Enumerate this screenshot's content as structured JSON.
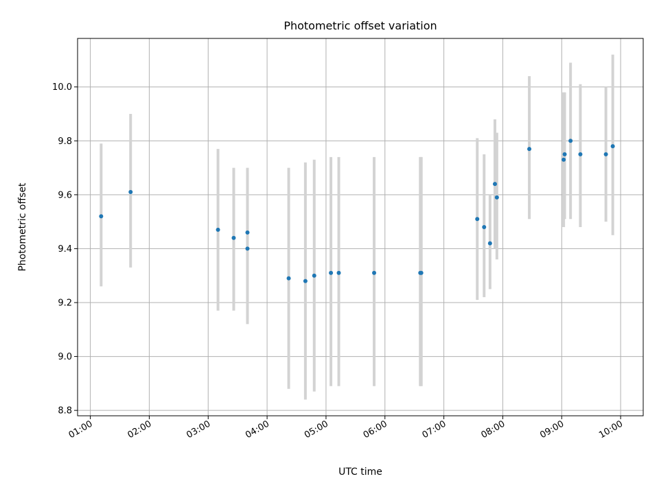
{
  "chart_data": {
    "type": "scatter",
    "title": "Photometric offset variation",
    "xlabel": "UTC time",
    "ylabel": "Photometric offset",
    "x_axis_unit": "minutes after 00:00 UTC",
    "xlim": [
      47,
      623
    ],
    "ylim": [
      8.78,
      10.18
    ],
    "x_ticks": [
      {
        "value": 60,
        "label": "01:00"
      },
      {
        "value": 120,
        "label": "02:00"
      },
      {
        "value": 180,
        "label": "03:00"
      },
      {
        "value": 240,
        "label": "04:00"
      },
      {
        "value": 300,
        "label": "05:00"
      },
      {
        "value": 360,
        "label": "06:00"
      },
      {
        "value": 420,
        "label": "07:00"
      },
      {
        "value": 480,
        "label": "08:00"
      },
      {
        "value": 540,
        "label": "09:00"
      },
      {
        "value": 600,
        "label": "10:00"
      }
    ],
    "y_ticks": [
      {
        "value": 8.8,
        "label": "8.8"
      },
      {
        "value": 9.0,
        "label": "9.0"
      },
      {
        "value": 9.2,
        "label": "9.2"
      },
      {
        "value": 9.4,
        "label": "9.4"
      },
      {
        "value": 9.6,
        "label": "9.6"
      },
      {
        "value": 9.8,
        "label": "9.8"
      },
      {
        "value": 10.0,
        "label": "10.0"
      }
    ],
    "grid": true,
    "colors": {
      "point": "#1f77b4",
      "errorbar": "#d3d3d3"
    },
    "points": [
      {
        "x": 71,
        "y": 9.52,
        "lo": 9.26,
        "hi": 9.79
      },
      {
        "x": 101,
        "y": 9.61,
        "lo": 9.33,
        "hi": 9.9
      },
      {
        "x": 190,
        "y": 9.47,
        "lo": 9.17,
        "hi": 9.77
      },
      {
        "x": 206,
        "y": 9.44,
        "lo": 9.17,
        "hi": 9.7
      },
      {
        "x": 220,
        "y": 9.46,
        "lo": 9.14,
        "hi": 9.7
      },
      {
        "x": 220,
        "y": 9.4,
        "lo": 9.12,
        "hi": 9.68
      },
      {
        "x": 262,
        "y": 9.29,
        "lo": 8.88,
        "hi": 9.7
      },
      {
        "x": 279,
        "y": 9.28,
        "lo": 8.84,
        "hi": 9.72
      },
      {
        "x": 288,
        "y": 9.3,
        "lo": 8.87,
        "hi": 9.73
      },
      {
        "x": 305,
        "y": 9.31,
        "lo": 8.89,
        "hi": 9.74
      },
      {
        "x": 313,
        "y": 9.31,
        "lo": 8.89,
        "hi": 9.74
      },
      {
        "x": 349,
        "y": 9.31,
        "lo": 8.89,
        "hi": 9.74
      },
      {
        "x": 396,
        "y": 9.31,
        "lo": 8.89,
        "hi": 9.74
      },
      {
        "x": 397,
        "y": 9.31,
        "lo": 8.89,
        "hi": 9.74
      },
      {
        "x": 454,
        "y": 9.51,
        "lo": 9.21,
        "hi": 9.81
      },
      {
        "x": 461,
        "y": 9.48,
        "lo": 9.22,
        "hi": 9.75
      },
      {
        "x": 467,
        "y": 9.42,
        "lo": 9.25,
        "hi": 9.6
      },
      {
        "x": 472,
        "y": 9.64,
        "lo": 9.4,
        "hi": 9.88
      },
      {
        "x": 474,
        "y": 9.59,
        "lo": 9.36,
        "hi": 9.83
      },
      {
        "x": 507,
        "y": 9.77,
        "lo": 9.51,
        "hi": 10.04
      },
      {
        "x": 542,
        "y": 9.73,
        "lo": 9.48,
        "hi": 9.98
      },
      {
        "x": 543,
        "y": 9.75,
        "lo": 9.51,
        "hi": 9.98
      },
      {
        "x": 549,
        "y": 9.8,
        "lo": 9.51,
        "hi": 10.09
      },
      {
        "x": 559,
        "y": 9.75,
        "lo": 9.48,
        "hi": 10.01
      },
      {
        "x": 585,
        "y": 9.75,
        "lo": 9.5,
        "hi": 10.0
      },
      {
        "x": 592,
        "y": 9.78,
        "lo": 9.45,
        "hi": 10.12
      }
    ]
  }
}
